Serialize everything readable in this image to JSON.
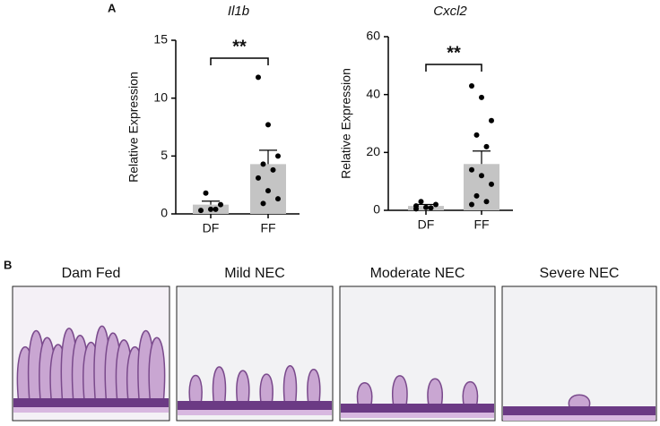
{
  "panel_a_label": "A",
  "chart_data": [
    {
      "type": "bar",
      "title": "Il1b",
      "ylabel": "Relative Expression",
      "categories": [
        "DF",
        "FF"
      ],
      "values": [
        0.8,
        4.3
      ],
      "errors": [
        0.3,
        1.2
      ],
      "points": [
        [
          0.3,
          0.4,
          0.8,
          1.8,
          0.4
        ],
        [
          11.8,
          7.7,
          5.0,
          4.3,
          3.8,
          3.1,
          2.0,
          1.3,
          0.9
        ]
      ],
      "color": "#c4c4c4",
      "point_color": "#000000",
      "ylim": [
        0,
        15
      ],
      "yticks": [
        0,
        5,
        10,
        15
      ],
      "significance": "**"
    },
    {
      "type": "bar",
      "title": "Cxcl2",
      "ylabel": "Relative Expression",
      "categories": [
        "DF",
        "FF"
      ],
      "values": [
        1.5,
        16
      ],
      "errors": [
        0.5,
        4.5
      ],
      "points": [
        [
          0.5,
          1.0,
          2.0,
          3.0,
          0.8,
          1.5
        ],
        [
          43,
          39,
          31,
          26,
          22,
          14,
          12,
          9,
          5,
          3,
          2
        ]
      ],
      "color": "#c4c4c4",
      "point_color": "#000000",
      "ylim": [
        0,
        60
      ],
      "yticks": [
        0,
        20,
        40,
        60
      ],
      "significance": "**"
    }
  ],
  "panel_b_label": "B",
  "histology": {
    "labels": [
      "Dam Fed",
      "Mild NEC",
      "Moderate NEC",
      "Severe NEC"
    ]
  }
}
